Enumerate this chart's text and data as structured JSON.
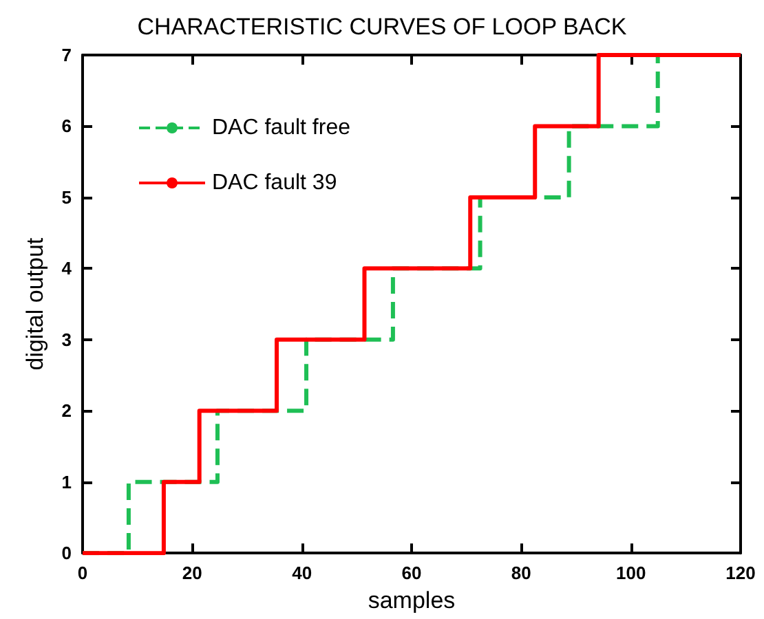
{
  "chart_data": {
    "type": "step",
    "title": "CHARACTERISTIC CURVES OF LOOP BACK",
    "xlabel": "samples",
    "ylabel": "digital output",
    "xlim": [
      0,
      120
    ],
    "xticks": [
      0,
      20,
      40,
      60,
      80,
      100,
      120
    ],
    "ylim": [
      0,
      7
    ],
    "yticks": [
      0,
      1,
      2,
      3,
      4,
      5,
      6,
      7
    ],
    "grid": false,
    "legend": "top left",
    "marker": "none",
    "series": [
      {
        "name": "DAC fault free",
        "color": "#1fbf55",
        "line_style": "dashed",
        "x": [
          0,
          8.4,
          24.6,
          40.8,
          56.6,
          72.5,
          88.7,
          104.9,
          120
        ],
        "values": [
          0,
          1,
          2,
          3,
          4,
          5,
          6,
          7,
          7
        ]
      },
      {
        "name": "DAC fault 39",
        "color": "#ff0000",
        "line_style": "solid",
        "x": [
          0,
          14.8,
          21.3,
          35.4,
          51.4,
          70.7,
          82.5,
          94.1,
          120
        ],
        "values": [
          0,
          1,
          2,
          3,
          4,
          5,
          6,
          7,
          7
        ]
      }
    ]
  }
}
